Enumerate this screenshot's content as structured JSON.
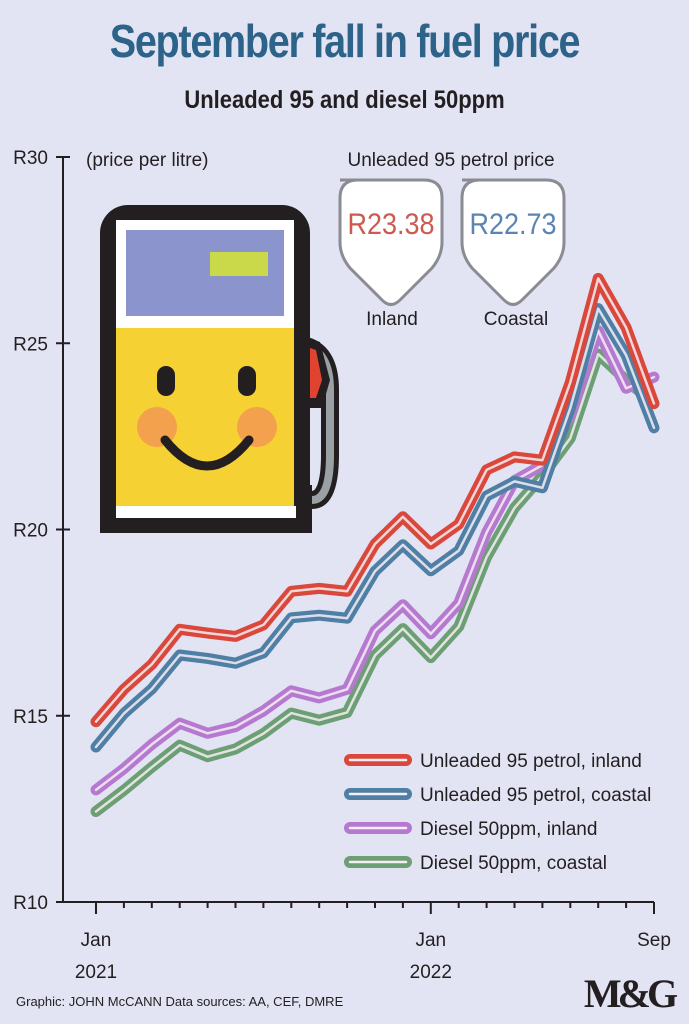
{
  "header": {
    "title": "September fall in fuel price",
    "subtitle": "Unleaded 95 and diesel 50ppm"
  },
  "callout": {
    "heading": "Unleaded 95 petrol price",
    "inland_price": "R23.38",
    "inland_label": "Inland",
    "coastal_price": "R22.73",
    "coastal_label": "Coastal"
  },
  "footer": {
    "credit": "Graphic: JOHN McCANN  Data sources: AA, CEF, DMRE",
    "logo_text": "M&G"
  },
  "colors": {
    "title": "#2d6389",
    "petrol_inland": "#d9483b",
    "petrol_coastal": "#4f7fa5",
    "diesel_inland": "#b57ad0",
    "diesel_coastal": "#6d9f75",
    "inland_price_text": "#cc5a50",
    "coastal_price_text": "#5b84b3",
    "background": "#e2e3f3"
  },
  "chart_data": {
    "type": "line",
    "title": "September fall in fuel price",
    "subtitle": "Unleaded 95 and diesel 50ppm",
    "ylabel": "(price per litre)",
    "ylim": [
      10,
      30
    ],
    "yticks": [
      {
        "value": 10,
        "label": "R10"
      },
      {
        "value": 15,
        "label": "R15"
      },
      {
        "value": 20,
        "label": "R20"
      },
      {
        "value": 25,
        "label": "R25"
      },
      {
        "value": 30,
        "label": "R30"
      }
    ],
    "xticks": [
      {
        "month": "Jan",
        "year": "2021"
      },
      {
        "month": "Jan",
        "year": "2022"
      },
      {
        "month": "Sep",
        "year": ""
      }
    ],
    "x": [
      "2021-01",
      "2021-02",
      "2021-03",
      "2021-04",
      "2021-05",
      "2021-06",
      "2021-07",
      "2021-08",
      "2021-09",
      "2021-10",
      "2021-11",
      "2021-12",
      "2022-01",
      "2022-02",
      "2022-03",
      "2022-04",
      "2022-05",
      "2022-06",
      "2022-07",
      "2022-08",
      "2022-09"
    ],
    "series": [
      {
        "name": "Unleaded 95 petrol, inland",
        "color": "#d9483b",
        "values": [
          14.84,
          15.71,
          16.38,
          17.32,
          17.22,
          17.13,
          17.44,
          18.34,
          18.42,
          18.34,
          19.61,
          20.34,
          19.61,
          20.14,
          21.6,
          21.95,
          21.86,
          23.95,
          26.74,
          25.42,
          23.38
        ]
      },
      {
        "name": "Unleaded 95 petrol, coastal",
        "color": "#4f7fa5",
        "values": [
          14.16,
          15.06,
          15.72,
          16.63,
          16.54,
          16.41,
          16.69,
          17.63,
          17.7,
          17.62,
          18.88,
          19.59,
          18.89,
          19.43,
          20.9,
          21.29,
          21.12,
          23.26,
          25.93,
          24.68,
          22.73
        ]
      },
      {
        "name": "Diesel 50ppm, inland",
        "color": "#b57ad0",
        "values": [
          13.01,
          13.58,
          14.23,
          14.8,
          14.53,
          14.71,
          15.13,
          15.67,
          15.48,
          15.71,
          17.28,
          17.98,
          17.2,
          18.02,
          19.92,
          21.31,
          21.73,
          23.06,
          25.34,
          23.79,
          24.09
        ]
      },
      {
        "name": "Diesel 50ppm, coastal",
        "color": "#6d9f75",
        "values": [
          12.43,
          13.0,
          13.62,
          14.21,
          13.9,
          14.11,
          14.52,
          15.07,
          14.88,
          15.09,
          16.62,
          17.34,
          16.56,
          17.39,
          19.26,
          20.58,
          21.44,
          22.45,
          24.71,
          24.01,
          23.38
        ]
      }
    ],
    "legend_position": "bottom-right",
    "grid": false
  }
}
